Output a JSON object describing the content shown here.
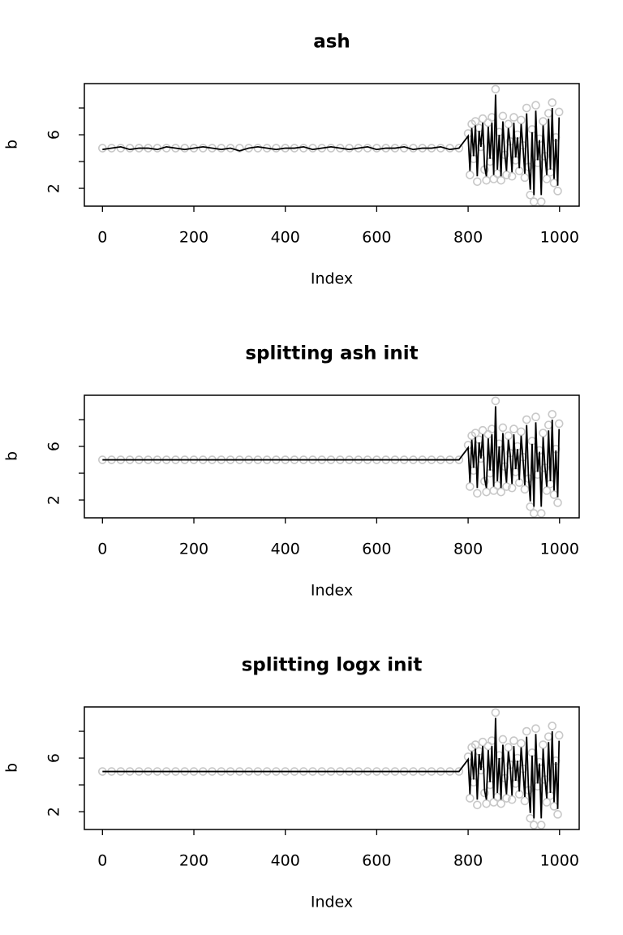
{
  "chart_data": [
    {
      "type": "line",
      "title": "ash",
      "xlabel": "Index",
      "ylabel": "b",
      "x": [
        0,
        20,
        40,
        60,
        80,
        100,
        120,
        140,
        160,
        180,
        200,
        220,
        240,
        260,
        280,
        300,
        320,
        340,
        360,
        380,
        400,
        420,
        440,
        460,
        480,
        500,
        520,
        540,
        560,
        580,
        600,
        620,
        640,
        660,
        680,
        700,
        720,
        740,
        760,
        780,
        800,
        804,
        808,
        812,
        816,
        820,
        824,
        828,
        832,
        836,
        840,
        844,
        848,
        852,
        856,
        860,
        864,
        868,
        872,
        876,
        880,
        884,
        888,
        892,
        896,
        900,
        904,
        908,
        912,
        916,
        920,
        924,
        928,
        932,
        936,
        940,
        944,
        948,
        952,
        956,
        960,
        964,
        968,
        972,
        976,
        980,
        984,
        988,
        992,
        996,
        999
      ],
      "xlim": [
        -39.6,
        1043
      ],
      "ylim": [
        0.67,
        9.82
      ],
      "xticks": [
        0,
        200,
        400,
        600,
        800,
        1000
      ],
      "yticks": [
        2,
        {
          "value": 4,
          "label": null
        },
        6,
        {
          "value": 8,
          "label": null
        }
      ],
      "series": [
        {
          "color": "#c8c8c8",
          "marker": "circle",
          "values": [
            5,
            5,
            5,
            5,
            5,
            5,
            5,
            5,
            5,
            5,
            5,
            5,
            5,
            5,
            5,
            5,
            5,
            5,
            5,
            5,
            5,
            5,
            5,
            5,
            5,
            5,
            5,
            5,
            5,
            5,
            5,
            5,
            5,
            5,
            5,
            5,
            5,
            5,
            5,
            5,
            6.1,
            3.0,
            6.8,
            4.2,
            7.0,
            2.5,
            6.5,
            5.1,
            7.2,
            3.4,
            2.6,
            6.9,
            4.0,
            7.3,
            2.7,
            9.4,
            3.1,
            6.2,
            2.6,
            7.4,
            4.5,
            3.0,
            6.8,
            5.5,
            2.9,
            7.3,
            4.1,
            6.0,
            3.3,
            7.1,
            5.2,
            2.8,
            8.0,
            3.6,
            1.5,
            6.4,
            1.0,
            8.2,
            3.9,
            5.7,
            1.0,
            7.0,
            4.4,
            2.7,
            7.6,
            3.2,
            8.4,
            2.4,
            5.8,
            1.8,
            7.7
          ]
        },
        {
          "color": "#000000",
          "values": [
            4.9,
            5.0,
            5.1,
            4.9,
            5.0,
            5.0,
            4.9,
            5.1,
            5.0,
            4.9,
            5.0,
            5.1,
            5.0,
            4.9,
            5.0,
            4.8,
            5.0,
            5.1,
            5.0,
            4.9,
            5.0,
            5.0,
            5.1,
            4.9,
            5.0,
            5.1,
            5.0,
            4.9,
            5.0,
            5.1,
            4.9,
            5.0,
            5.0,
            5.1,
            4.9,
            5.0,
            5.0,
            5.1,
            4.9,
            5.0,
            5.9,
            3.3,
            6.5,
            4.4,
            6.7,
            2.9,
            6.3,
            5.1,
            6.9,
            3.6,
            2.9,
            6.6,
            4.2,
            6.9,
            3.0,
            9.0,
            3.4,
            6.0,
            2.9,
            7.0,
            4.6,
            3.3,
            6.5,
            5.4,
            3.2,
            6.9,
            4.3,
            5.8,
            3.5,
            6.8,
            5.1,
            3.1,
            7.6,
            3.8,
            1.9,
            6.2,
            1.5,
            7.8,
            4.1,
            5.6,
            1.5,
            6.7,
            4.5,
            3.0,
            7.2,
            3.4,
            8.0,
            2.7,
            5.7,
            2.2,
            7.3
          ]
        }
      ]
    },
    {
      "type": "line",
      "title": "splitting ash init",
      "xlabel": "Index",
      "ylabel": "b",
      "x": [
        0,
        20,
        40,
        60,
        80,
        100,
        120,
        140,
        160,
        180,
        200,
        220,
        240,
        260,
        280,
        300,
        320,
        340,
        360,
        380,
        400,
        420,
        440,
        460,
        480,
        500,
        520,
        540,
        560,
        580,
        600,
        620,
        640,
        660,
        680,
        700,
        720,
        740,
        760,
        780,
        800,
        804,
        808,
        812,
        816,
        820,
        824,
        828,
        832,
        836,
        840,
        844,
        848,
        852,
        856,
        860,
        864,
        868,
        872,
        876,
        880,
        884,
        888,
        892,
        896,
        900,
        904,
        908,
        912,
        916,
        920,
        924,
        928,
        932,
        936,
        940,
        944,
        948,
        952,
        956,
        960,
        964,
        968,
        972,
        976,
        980,
        984,
        988,
        992,
        996,
        999
      ],
      "xlim": [
        -39.6,
        1043
      ],
      "ylim": [
        0.67,
        9.82
      ],
      "xticks": [
        0,
        200,
        400,
        600,
        800,
        1000
      ],
      "yticks": [
        2,
        {
          "value": 4,
          "label": null
        },
        6,
        {
          "value": 8,
          "label": null
        }
      ],
      "series": [
        {
          "color": "#c8c8c8",
          "marker": "circle",
          "values": [
            5,
            5,
            5,
            5,
            5,
            5,
            5,
            5,
            5,
            5,
            5,
            5,
            5,
            5,
            5,
            5,
            5,
            5,
            5,
            5,
            5,
            5,
            5,
            5,
            5,
            5,
            5,
            5,
            5,
            5,
            5,
            5,
            5,
            5,
            5,
            5,
            5,
            5,
            5,
            5,
            6.1,
            3.0,
            6.8,
            4.2,
            7.0,
            2.5,
            6.5,
            5.1,
            7.2,
            3.4,
            2.6,
            6.9,
            4.0,
            7.3,
            2.7,
            9.4,
            3.1,
            6.2,
            2.6,
            7.4,
            4.5,
            3.0,
            6.8,
            5.5,
            2.9,
            7.3,
            4.1,
            6.0,
            3.3,
            7.1,
            5.2,
            2.8,
            8.0,
            3.6,
            1.5,
            6.4,
            1.0,
            8.2,
            3.9,
            5.7,
            1.0,
            7.0,
            4.4,
            2.7,
            7.6,
            3.2,
            8.4,
            2.4,
            5.8,
            1.8,
            7.7
          ]
        },
        {
          "color": "#000000",
          "values": [
            5,
            5,
            5,
            5,
            5,
            5,
            5,
            5,
            5,
            5,
            5,
            5,
            5,
            5,
            5,
            5,
            5,
            5,
            5,
            5,
            5,
            5,
            5,
            5,
            5,
            5,
            5,
            5,
            5,
            5,
            5,
            5,
            5,
            5,
            5,
            5,
            5,
            5,
            5,
            5,
            5.9,
            3.3,
            6.5,
            4.4,
            6.7,
            2.9,
            6.3,
            5.1,
            6.9,
            3.6,
            2.9,
            6.6,
            4.2,
            6.9,
            3.0,
            9.0,
            3.4,
            6.0,
            2.9,
            7.0,
            4.6,
            3.3,
            6.5,
            5.4,
            3.2,
            6.9,
            4.3,
            5.8,
            3.5,
            6.8,
            5.1,
            3.1,
            7.6,
            3.8,
            1.9,
            6.2,
            1.5,
            7.8,
            4.1,
            5.6,
            1.5,
            6.7,
            4.5,
            3.0,
            7.2,
            3.4,
            8.0,
            2.7,
            5.7,
            2.2,
            7.3
          ]
        }
      ]
    },
    {
      "type": "line",
      "title": "splitting logx init",
      "xlabel": "Index",
      "ylabel": "b",
      "x": [
        0,
        20,
        40,
        60,
        80,
        100,
        120,
        140,
        160,
        180,
        200,
        220,
        240,
        260,
        280,
        300,
        320,
        340,
        360,
        380,
        400,
        420,
        440,
        460,
        480,
        500,
        520,
        540,
        560,
        580,
        600,
        620,
        640,
        660,
        680,
        700,
        720,
        740,
        760,
        780,
        800,
        804,
        808,
        812,
        816,
        820,
        824,
        828,
        832,
        836,
        840,
        844,
        848,
        852,
        856,
        860,
        864,
        868,
        872,
        876,
        880,
        884,
        888,
        892,
        896,
        900,
        904,
        908,
        912,
        916,
        920,
        924,
        928,
        932,
        936,
        940,
        944,
        948,
        952,
        956,
        960,
        964,
        968,
        972,
        976,
        980,
        984,
        988,
        992,
        996,
        999
      ],
      "xlim": [
        -39.6,
        1043
      ],
      "ylim": [
        0.67,
        9.82
      ],
      "xticks": [
        0,
        200,
        400,
        600,
        800,
        1000
      ],
      "yticks": [
        2,
        {
          "value": 4,
          "label": null
        },
        6,
        {
          "value": 8,
          "label": null
        }
      ],
      "series": [
        {
          "color": "#c8c8c8",
          "marker": "circle",
          "values": [
            5,
            5,
            5,
            5,
            5,
            5,
            5,
            5,
            5,
            5,
            5,
            5,
            5,
            5,
            5,
            5,
            5,
            5,
            5,
            5,
            5,
            5,
            5,
            5,
            5,
            5,
            5,
            5,
            5,
            5,
            5,
            5,
            5,
            5,
            5,
            5,
            5,
            5,
            5,
            5,
            6.1,
            3.0,
            6.8,
            4.2,
            7.0,
            2.5,
            6.5,
            5.1,
            7.2,
            3.4,
            2.6,
            6.9,
            4.0,
            7.3,
            2.7,
            9.4,
            3.1,
            6.2,
            2.6,
            7.4,
            4.5,
            3.0,
            6.8,
            5.5,
            2.9,
            7.3,
            4.1,
            6.0,
            3.3,
            7.1,
            5.2,
            2.8,
            8.0,
            3.6,
            1.5,
            6.4,
            1.0,
            8.2,
            3.9,
            5.7,
            1.0,
            7.0,
            4.4,
            2.7,
            7.6,
            3.2,
            8.4,
            2.4,
            5.8,
            1.8,
            7.7
          ]
        },
        {
          "color": "#000000",
          "values": [
            5,
            5,
            5,
            5,
            5,
            5,
            5,
            5,
            5,
            5,
            5,
            5,
            5,
            5,
            5,
            5,
            5,
            5,
            5,
            5,
            5,
            5,
            5,
            5,
            5,
            5,
            5,
            5,
            5,
            5,
            5,
            5,
            5,
            5,
            5,
            5,
            5,
            5,
            5,
            5,
            5.9,
            3.3,
            6.5,
            4.4,
            6.7,
            2.9,
            6.3,
            5.1,
            6.9,
            3.6,
            2.9,
            6.6,
            4.2,
            6.9,
            3.0,
            9.0,
            3.4,
            6.0,
            2.9,
            7.0,
            4.6,
            3.3,
            6.5,
            5.4,
            3.2,
            6.9,
            4.3,
            5.8,
            3.5,
            6.8,
            5.1,
            3.1,
            7.6,
            3.8,
            1.9,
            6.2,
            1.5,
            7.8,
            4.1,
            5.6,
            1.5,
            6.7,
            4.5,
            3.0,
            7.2,
            3.4,
            8.0,
            2.7,
            5.7,
            2.2,
            7.3
          ]
        }
      ]
    }
  ]
}
